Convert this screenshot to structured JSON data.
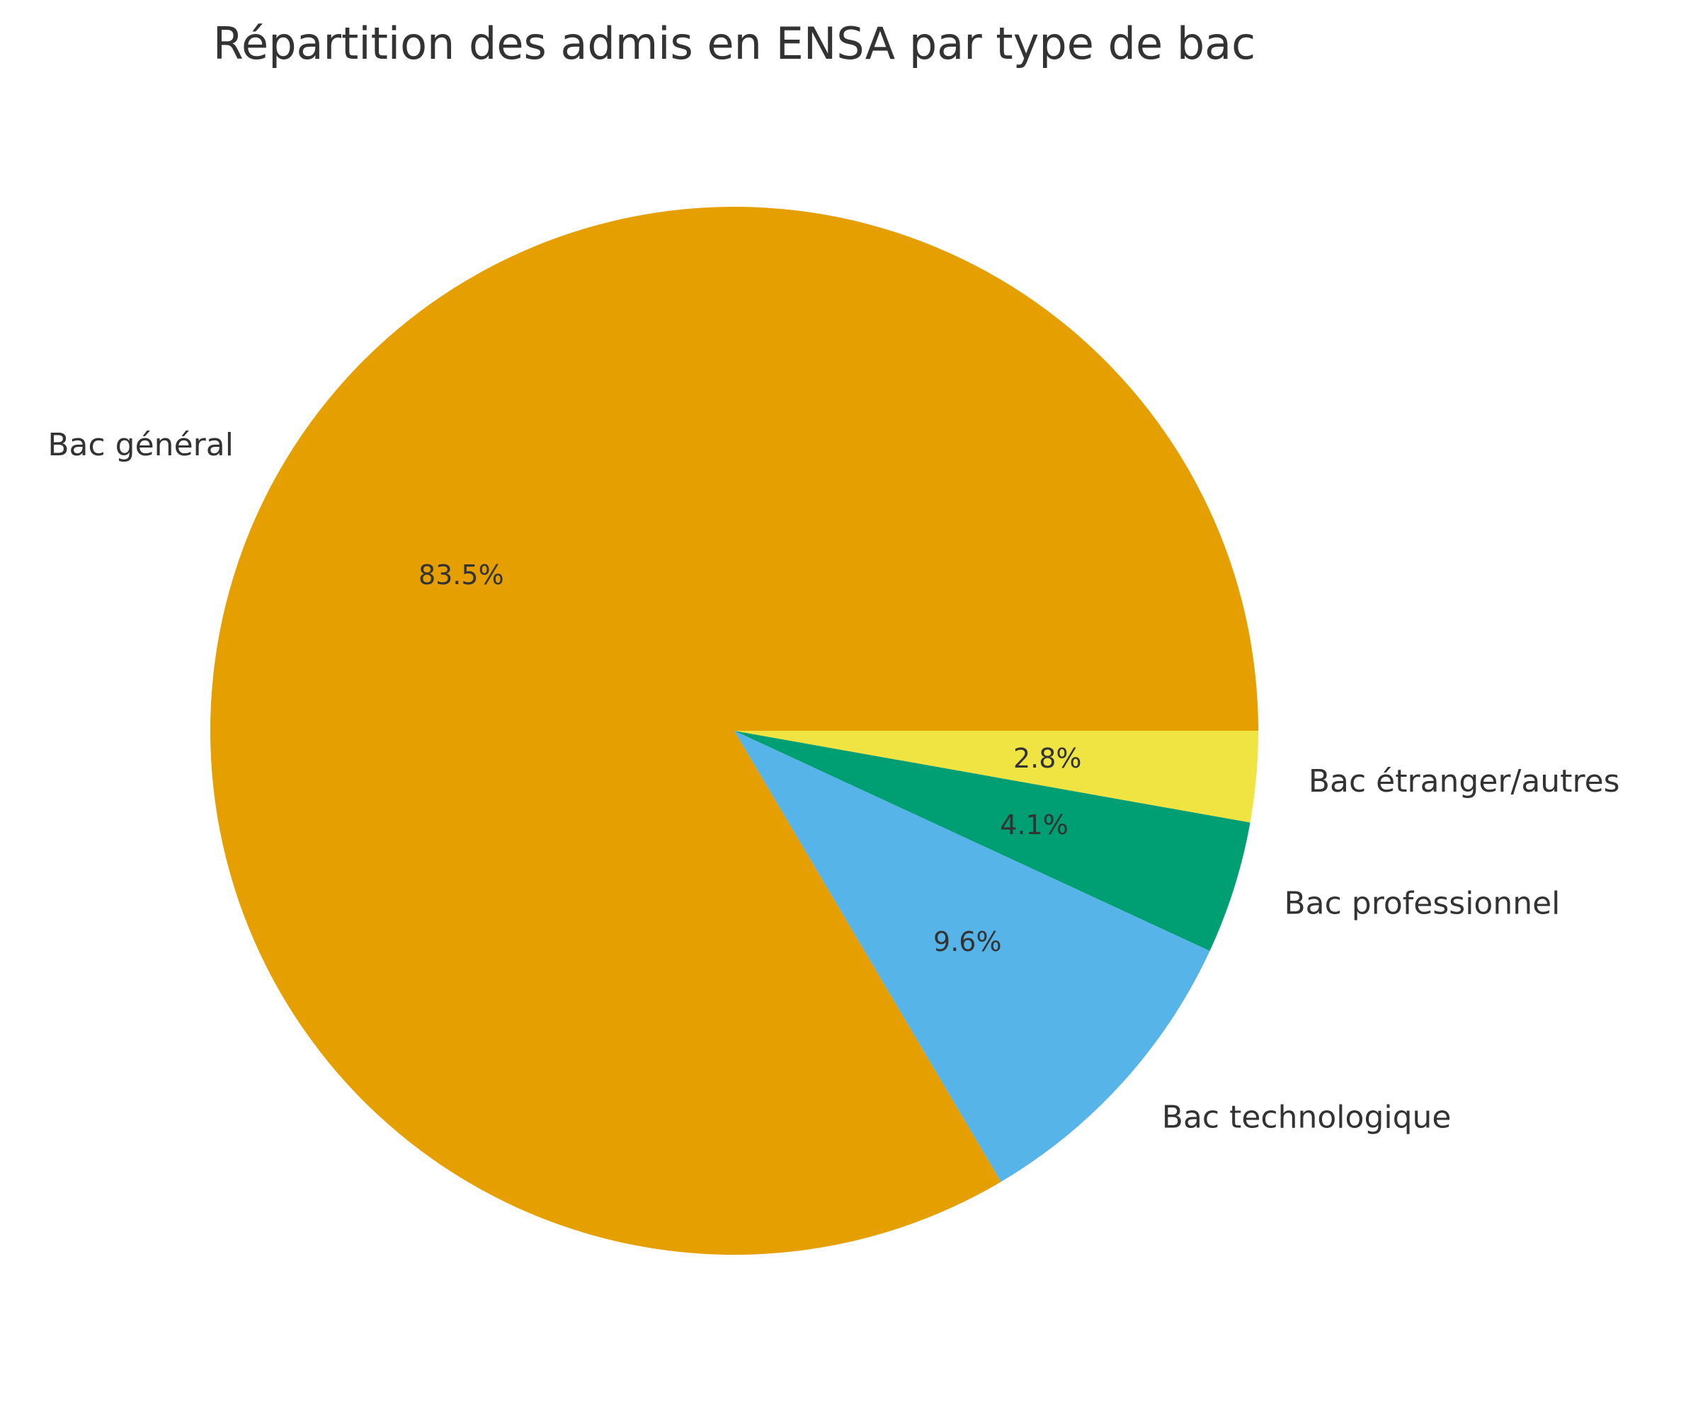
{
  "chart_data": {
    "type": "pie",
    "title": "Répartition des admis en ENSA par type de bac",
    "slices": [
      {
        "label": "Bac général",
        "value": 83.5,
        "pct_label": "83.5%",
        "color": "#E69F00"
      },
      {
        "label": "Bac technologique",
        "value": 9.6,
        "pct_label": "9.6%",
        "color": "#56B4E9"
      },
      {
        "label": "Bac professionnel",
        "value": 4.1,
        "pct_label": "4.1%",
        "color": "#009E73"
      },
      {
        "label": "Bac étranger/autres",
        "value": 2.8,
        "pct_label": "2.8%",
        "color": "#F0E442"
      }
    ],
    "start_angle": "0° (3 o'clock)",
    "direction": "counterclockwise",
    "legend": "none"
  }
}
